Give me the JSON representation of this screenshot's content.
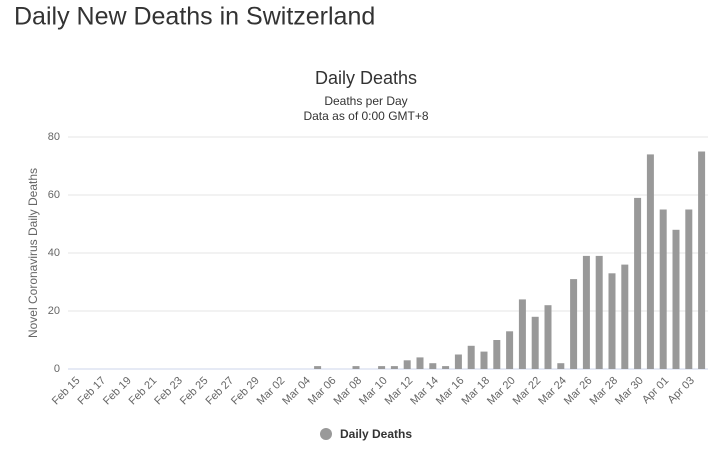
{
  "page_title": "Daily New Deaths in Switzerland",
  "chart_data": {
    "type": "bar",
    "title": "Daily Deaths",
    "subtitle": [
      "Deaths per Day",
      "Data as of 0:00 GMT+8"
    ],
    "ylabel": "Novel Coronavirus Daily Deaths",
    "categories": [
      "Feb 15",
      null,
      "Feb 17",
      null,
      "Feb 19",
      null,
      "Feb 21",
      null,
      "Feb 23",
      null,
      "Feb 25",
      null,
      "Feb 27",
      null,
      "Feb 29",
      null,
      "Mar 02",
      null,
      "Mar 04",
      null,
      "Mar 06",
      null,
      "Mar 08",
      null,
      "Mar 10",
      null,
      "Mar 12",
      null,
      "Mar 14",
      null,
      "Mar 16",
      null,
      "Mar 18",
      null,
      "Mar 20",
      null,
      "Mar 22",
      null,
      "Mar 24",
      null,
      "Mar 26",
      null,
      "Mar 28",
      null,
      "Mar 30",
      null,
      "Apr 01",
      null,
      "Apr 03",
      null
    ],
    "series": [
      {
        "name": "Daily Deaths",
        "color": "#999999",
        "values": [
          0,
          0,
          0,
          0,
          0,
          0,
          0,
          0,
          0,
          0,
          0,
          0,
          0,
          0,
          0,
          0,
          0,
          0,
          0,
          1,
          0,
          0,
          1,
          0,
          1,
          1,
          3,
          4,
          2,
          1,
          5,
          8,
          6,
          10,
          13,
          24,
          18,
          22,
          2,
          31,
          39,
          39,
          33,
          36,
          59,
          74,
          55,
          48,
          55,
          75
        ]
      }
    ],
    "ylim": [
      0,
      80
    ],
    "yticks": [
      0,
      20,
      40,
      60,
      80
    ],
    "grid": true,
    "legend": "bottom"
  }
}
